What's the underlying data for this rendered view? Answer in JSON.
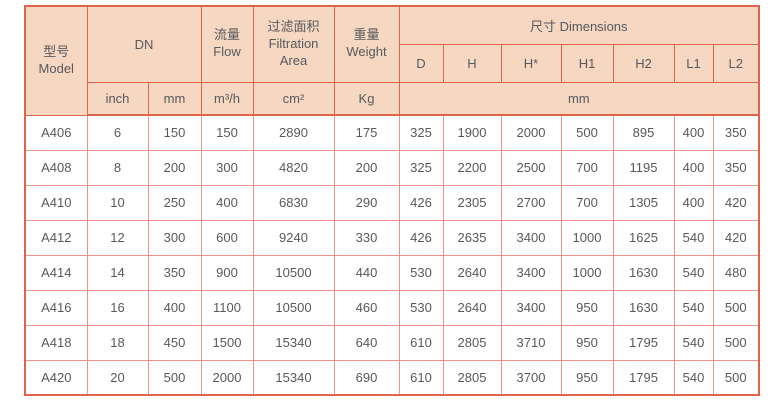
{
  "colors": {
    "header_bg": "#f5d7c2",
    "header_border": "#df654a",
    "body_border": "#ec948c",
    "body_bg": "#ffffff",
    "text": "#58595b"
  },
  "table": {
    "header": {
      "model": "型号\nModel",
      "dn": "DN",
      "flow": "流量\nFlow",
      "filtration_area": "过滤面积\nFiltration\nArea",
      "weight": "重量\nWeight",
      "dimensions": "尺寸 Dimensions",
      "dim_columns": [
        "D",
        "H",
        "H*",
        "H1",
        "H2",
        "L1",
        "L2"
      ],
      "units": {
        "inch": "inch",
        "mm": "mm",
        "flow": "m³/h",
        "area": "cm²",
        "weight": "Kg",
        "dims": "mm"
      }
    },
    "rows": [
      [
        "A406",
        "6",
        "150",
        "150",
        "2890",
        "175",
        "325",
        "1900",
        "2000",
        "500",
        "895",
        "400",
        "350"
      ],
      [
        "A408",
        "8",
        "200",
        "300",
        "4820",
        "200",
        "325",
        "2200",
        "2500",
        "700",
        "1195",
        "400",
        "350"
      ],
      [
        "A410",
        "10",
        "250",
        "400",
        "6830",
        "290",
        "426",
        "2305",
        "2700",
        "700",
        "1305",
        "400",
        "420"
      ],
      [
        "A412",
        "12",
        "300",
        "600",
        "9240",
        "330",
        "426",
        "2635",
        "3400",
        "1000",
        "1625",
        "540",
        "420"
      ],
      [
        "A414",
        "14",
        "350",
        "900",
        "10500",
        "440",
        "530",
        "2640",
        "3400",
        "1000",
        "1630",
        "540",
        "480"
      ],
      [
        "A416",
        "16",
        "400",
        "1100",
        "10500",
        "460",
        "530",
        "2640",
        "3400",
        "950",
        "1630",
        "540",
        "500"
      ],
      [
        "A418",
        "18",
        "450",
        "1500",
        "15340",
        "640",
        "610",
        "2805",
        "3710",
        "950",
        "1795",
        "540",
        "500"
      ],
      [
        "A420",
        "20",
        "500",
        "2000",
        "15340",
        "690",
        "610",
        "2805",
        "3700",
        "950",
        "1795",
        "540",
        "500"
      ]
    ]
  }
}
